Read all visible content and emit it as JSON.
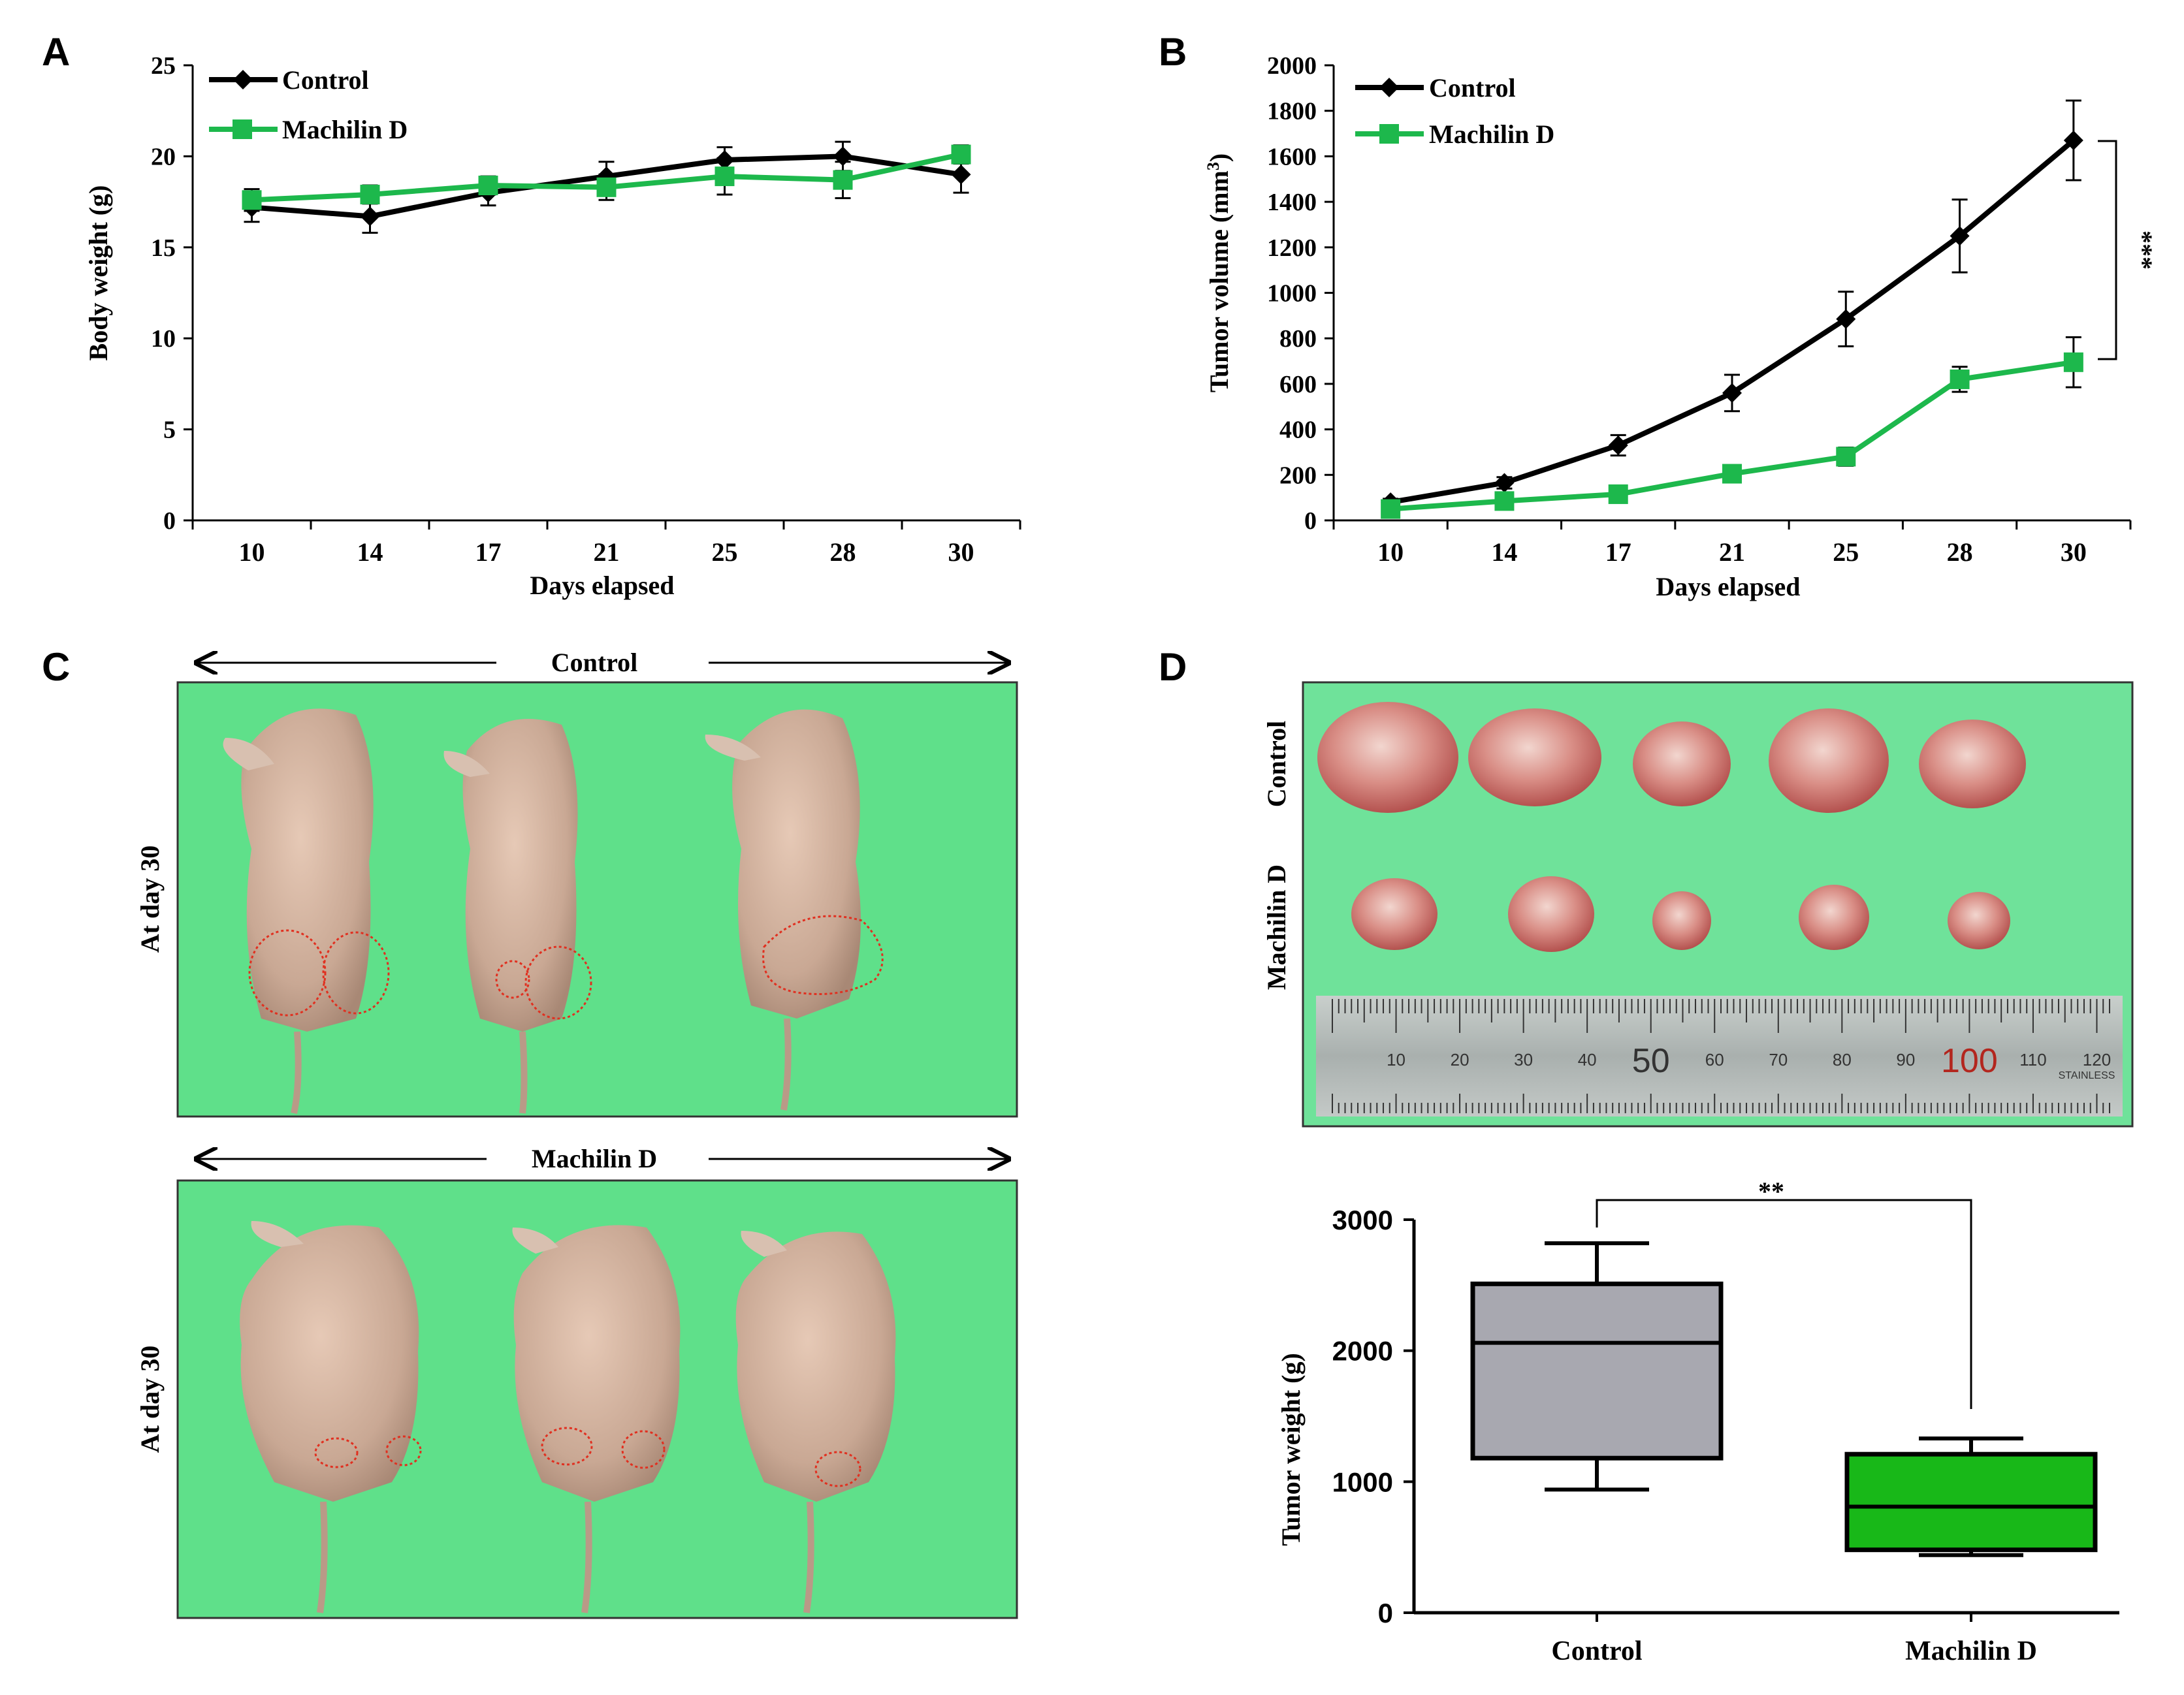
{
  "panels": {
    "A": {
      "letter": "A"
    },
    "B": {
      "letter": "B"
    },
    "C": {
      "letter": "C",
      "top_label": "Control",
      "bottom_label": "Machilin D",
      "side_label": "At day 30"
    },
    "D": {
      "letter": "D",
      "row_top": "Control",
      "row_bottom": "Machilin D",
      "ruler_ticks": [
        "10",
        "20",
        "30",
        "40",
        "50",
        "60",
        "70",
        "80",
        "90",
        "100",
        "110",
        "120"
      ],
      "ruler_brand": "STAINLESS"
    }
  },
  "colors": {
    "control": "#000000",
    "machilin": "#1db84c",
    "box_control": "#a8a8b0",
    "box_machilin": "#18b818",
    "photo_bg": "#5fe08a"
  },
  "chart_data": [
    {
      "id": "A",
      "type": "line",
      "ylabel": "Body weight (g)",
      "xlabel": "Days elapsed",
      "categories": [
        "10",
        "14",
        "17",
        "21",
        "25",
        "28",
        "30"
      ],
      "ylim": [
        0,
        25
      ],
      "yticks": [
        0,
        5,
        10,
        15,
        20,
        25
      ],
      "series": [
        {
          "name": "Control",
          "values": [
            17.2,
            16.7,
            18.0,
            18.9,
            19.8,
            20.0,
            19.0
          ],
          "errors": [
            0.8,
            0.9,
            0.7,
            0.8,
            0.7,
            0.8,
            1.0
          ]
        },
        {
          "name": "Machilin D",
          "values": [
            17.6,
            17.9,
            18.4,
            18.3,
            18.9,
            18.7,
            20.1
          ],
          "errors": [
            0.6,
            0.5,
            0.5,
            0.7,
            1.0,
            1.0,
            0.5
          ]
        }
      ]
    },
    {
      "id": "B",
      "type": "line",
      "ylabel": "Tumor volume (mm",
      "ylabel_sup": "3",
      "ylabel_end": ")",
      "xlabel": "Days elapsed",
      "categories": [
        "10",
        "14",
        "17",
        "21",
        "25",
        "28",
        "30"
      ],
      "ylim": [
        0,
        2000
      ],
      "yticks": [
        0,
        200,
        400,
        600,
        800,
        1000,
        1200,
        1400,
        1600,
        1800,
        2000
      ],
      "significance": "***",
      "series": [
        {
          "name": "Control",
          "values": [
            80,
            165,
            330,
            560,
            885,
            1250,
            1670
          ],
          "errors": [
            15,
            25,
            45,
            80,
            120,
            160,
            175
          ]
        },
        {
          "name": "Machilin D",
          "values": [
            50,
            85,
            115,
            205,
            280,
            620,
            695
          ],
          "errors": [
            10,
            15,
            20,
            25,
            40,
            55,
            110
          ]
        }
      ]
    },
    {
      "id": "D",
      "type": "box",
      "ylabel": "Tumor weight (g)",
      "categories": [
        "Control",
        "Machilin D"
      ],
      "ylim": [
        0,
        3000
      ],
      "yticks": [
        0,
        1000,
        2000,
        3000
      ],
      "significance": "**",
      "boxes": [
        {
          "name": "Control",
          "min": 940,
          "q1": 1180,
          "median": 2060,
          "q3": 2510,
          "max": 2820
        },
        {
          "name": "Machilin D",
          "min": 440,
          "q1": 480,
          "median": 810,
          "q3": 1210,
          "max": 1330
        }
      ]
    }
  ]
}
